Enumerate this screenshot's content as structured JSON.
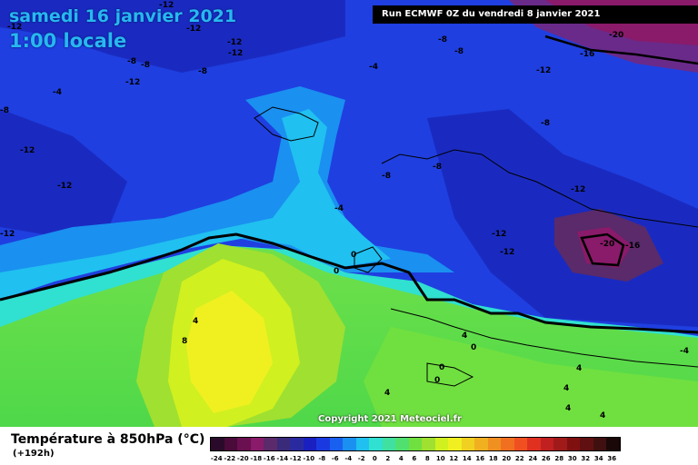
{
  "header": {
    "date": "samedi 16 janvier 2021",
    "time": "1:00 locale",
    "run": "Run ECMWF 0Z du vendredi 8 janvier 2021"
  },
  "map": {
    "copyright": "Copyright 2021 Meteociel.fr",
    "isotherm_labels": [
      "-12",
      "-12",
      "-12",
      "-12",
      "-8",
      "-8",
      "-12",
      "-8",
      "-4",
      "-8",
      "-12",
      "-12",
      "-12",
      "-8",
      "-20",
      "-16",
      "-8",
      "-8",
      "-4",
      "-12",
      "-8",
      "-8",
      "-12",
      "-4",
      "-12",
      "-12",
      "-12",
      "-20",
      "-16",
      "0",
      "0",
      "4",
      "8",
      "4",
      "4",
      "0",
      "0",
      "0",
      "4",
      "4",
      "4",
      "4",
      "-4"
    ]
  },
  "legend": {
    "title": "Température à 850hPa (°C)",
    "subtitle": "(+192h)",
    "labels": [
      "-24",
      "-22",
      "-20",
      "-18",
      "-16",
      "-14",
      "-12",
      "-10",
      "-8",
      "-6",
      "-4",
      "-2",
      "0",
      "2",
      "4",
      "6",
      "8",
      "10",
      "12",
      "14",
      "16",
      "18",
      "20",
      "22",
      "24",
      "26",
      "28",
      "30",
      "32",
      "34",
      "36"
    ],
    "colors": [
      "#2a0a2a",
      "#4a0a3a",
      "#6a1050",
      "#8a1a6a",
      "#5a2a6a",
      "#3a2a7a",
      "#2a2aa0",
      "#1a20c0",
      "#1a3ae0",
      "#1a60f0",
      "#1a90f0",
      "#20c0f0",
      "#30e0d0",
      "#40e0a0",
      "#50e070",
      "#70e040",
      "#a0e030",
      "#d0f020",
      "#f0f020",
      "#f0d020",
      "#f0b020",
      "#f09020",
      "#f07020",
      "#f05020",
      "#e03020",
      "#c02020",
      "#a01a1a",
      "#801010",
      "#601010",
      "#401010",
      "#1a0808"
    ]
  }
}
